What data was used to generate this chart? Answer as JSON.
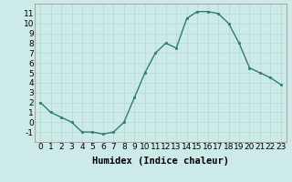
{
  "x": [
    0,
    1,
    2,
    3,
    4,
    5,
    6,
    7,
    8,
    9,
    10,
    11,
    12,
    13,
    14,
    15,
    16,
    17,
    18,
    19,
    20,
    21,
    22,
    23
  ],
  "y": [
    2,
    1,
    0.5,
    0,
    -1,
    -1,
    -1.2,
    -1,
    0,
    2.5,
    5,
    7,
    8,
    7.5,
    10.5,
    11.2,
    11.2,
    11,
    10,
    8,
    5.5,
    5,
    4.5,
    3.8
  ],
  "line_color": "#2e7d6e",
  "marker_color": "#2e7d6e",
  "bg_color": "#cceae7",
  "grid_color": "#b8d8d4",
  "xlabel": "Humidex (Indice chaleur)",
  "xlim": [
    -0.5,
    23.5
  ],
  "ylim": [
    -2,
    12
  ],
  "yticks": [
    -1,
    0,
    1,
    2,
    3,
    4,
    5,
    6,
    7,
    8,
    9,
    10,
    11
  ],
  "xticks": [
    0,
    1,
    2,
    3,
    4,
    5,
    6,
    7,
    8,
    9,
    10,
    11,
    12,
    13,
    14,
    15,
    16,
    17,
    18,
    19,
    20,
    21,
    22,
    23
  ],
  "tick_fontsize": 6.5,
  "xlabel_fontsize": 7.5,
  "marker_size": 2.0,
  "line_width": 1.0
}
